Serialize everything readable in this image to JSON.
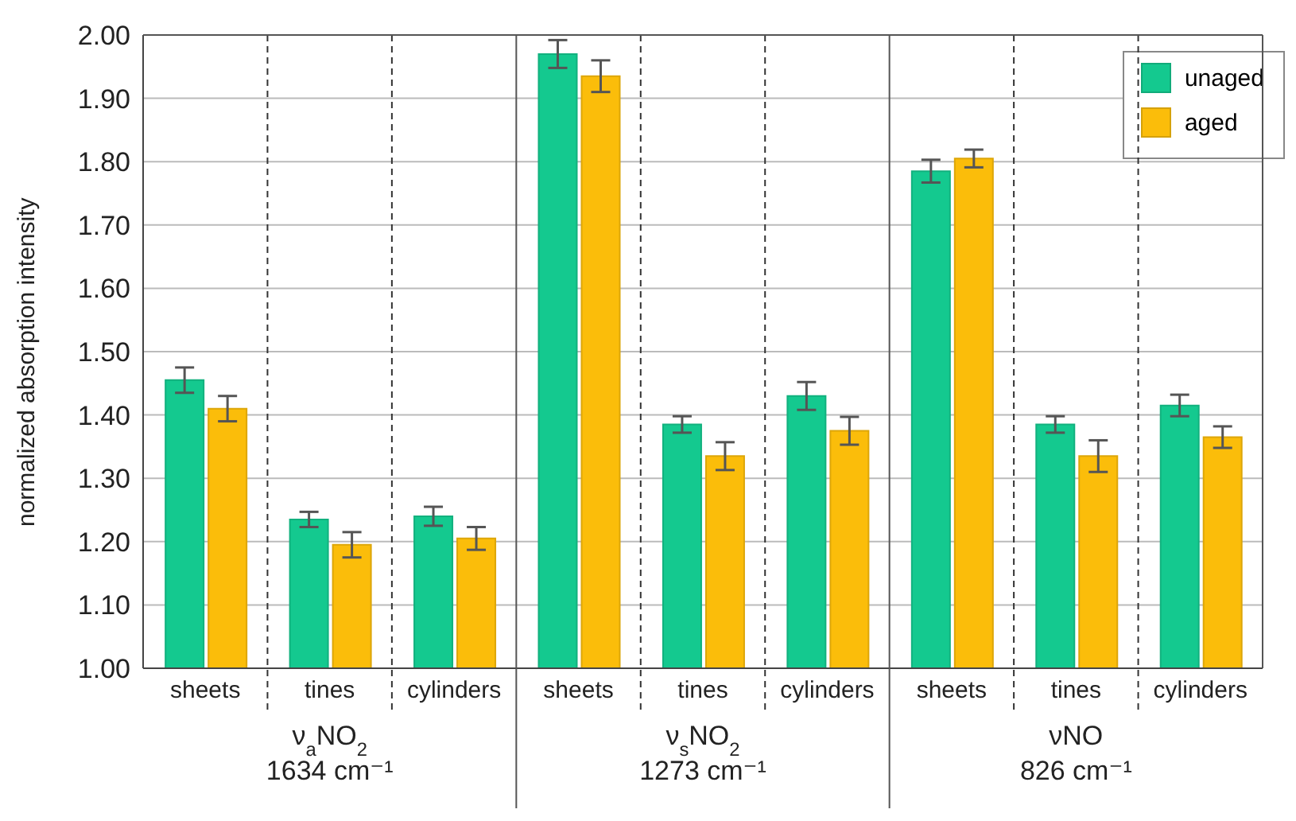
{
  "chart_data": {
    "type": "bar",
    "ylabel": "normalized absorption intensity",
    "categories": [
      "sheets",
      "tines",
      "cylinders",
      "sheets",
      "tines",
      "cylinders",
      "sheets",
      "tines",
      "cylinders"
    ],
    "series": [
      {
        "name": "unaged",
        "color": "#14c98f",
        "values": [
          1.455,
          1.235,
          1.24,
          1.97,
          1.385,
          1.43,
          1.785,
          1.385,
          1.415
        ],
        "errors": [
          0.02,
          0.012,
          0.015,
          0.022,
          0.013,
          0.022,
          0.018,
          0.013,
          0.017
        ]
      },
      {
        "name": "aged",
        "color": "#fbbd0a",
        "values": [
          1.41,
          1.195,
          1.205,
          1.935,
          1.335,
          1.375,
          1.805,
          1.335,
          1.365
        ],
        "errors": [
          0.02,
          0.02,
          0.018,
          0.025,
          0.022,
          0.022,
          0.014,
          0.025,
          0.017
        ]
      }
    ],
    "ylim": [
      1.0,
      2.0
    ],
    "yticks": [
      {
        "value": 1.0,
        "label": "1.00"
      },
      {
        "value": 1.1,
        "label": "1.10"
      },
      {
        "value": 1.2,
        "label": "1.20"
      },
      {
        "value": 1.3,
        "label": "1.30"
      },
      {
        "value": 1.4,
        "label": "1.40"
      },
      {
        "value": 1.5,
        "label": "1.50"
      },
      {
        "value": 1.6,
        "label": "1.60"
      },
      {
        "value": 1.7,
        "label": "1.70"
      },
      {
        "value": 1.8,
        "label": "1.80"
      },
      {
        "value": 1.9,
        "label": "1.90"
      },
      {
        "value": 2.0,
        "label": "2.00"
      }
    ],
    "grid": "y",
    "legend": "top right",
    "annotations": [
      "ν$_{a}$NO$_{2}$\n1634 cm⁻¹",
      "ν$_{s}$NO$_{2}$\n1273 cm⁻¹",
      "νNO\n826 cm⁻¹"
    ]
  }
}
